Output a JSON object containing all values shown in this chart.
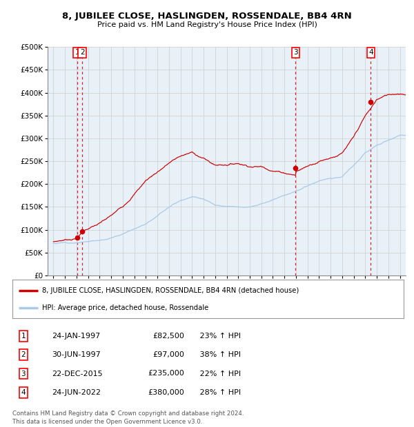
{
  "title": "8, JUBILEE CLOSE, HASLINGDEN, ROSSENDALE, BB4 4RN",
  "subtitle": "Price paid vs. HM Land Registry's House Price Index (HPI)",
  "legend_line1": "8, JUBILEE CLOSE, HASLINGDEN, ROSSENDALE, BB4 4RN (detached house)",
  "legend_line2": "HPI: Average price, detached house, Rossendale",
  "footer1": "Contains HM Land Registry data © Crown copyright and database right 2024.",
  "footer2": "This data is licensed under the Open Government Licence v3.0.",
  "sale_points": [
    {
      "num": 1,
      "date_label": "24-JAN-1997",
      "price": 82500,
      "pct": "23%",
      "x_year": 1997.07
    },
    {
      "num": 2,
      "date_label": "30-JUN-1997",
      "price": 97000,
      "pct": "38%",
      "x_year": 1997.5
    },
    {
      "num": 3,
      "date_label": "22-DEC-2015",
      "price": 235000,
      "pct": "22%",
      "x_year": 2015.97
    },
    {
      "num": 4,
      "date_label": "24-JUN-2022",
      "price": 380000,
      "pct": "28%",
      "x_year": 2022.48
    }
  ],
  "hpi_color": "#aac9e8",
  "price_color": "#cc0000",
  "dashed_line_color": "#cc0000",
  "background_plot": "#e8f0f8",
  "background_fig": "#ffffff",
  "ylim": [
    0,
    500000
  ],
  "xlim": [
    1994.5,
    2025.5
  ],
  "yticks": [
    0,
    50000,
    100000,
    150000,
    200000,
    250000,
    300000,
    350000,
    400000,
    450000,
    500000
  ],
  "hpi_seed": 12,
  "price_seed": 7
}
